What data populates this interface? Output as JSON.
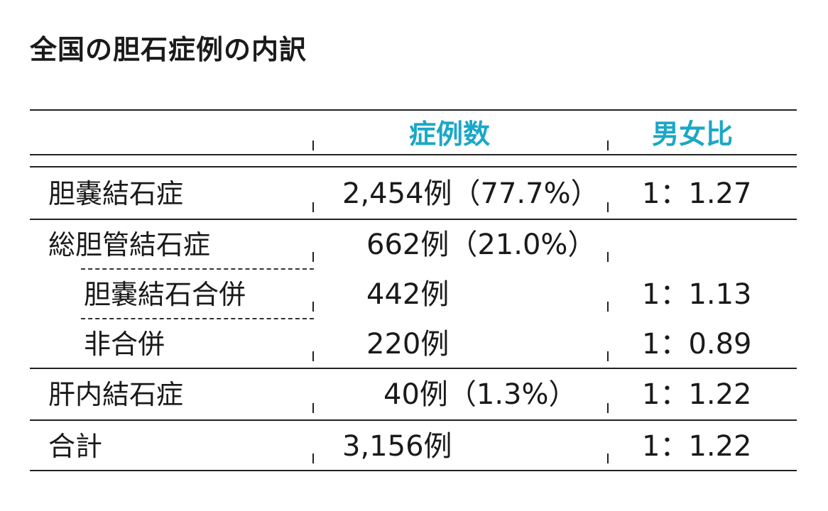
{
  "title": "全国の胆石症例の内訳",
  "header": {
    "col_cases": "症例数",
    "col_ratio": "男女比"
  },
  "colors": {
    "accent": "#1aa7c8",
    "line": "#222222"
  },
  "rows": [
    {
      "label": "胆嚢結石症",
      "cases": "2,454例（77.7%）",
      "ratio": "1：1.27"
    },
    {
      "label": "総胆管結石症",
      "cases": "662例（21.0%）",
      "ratio": ""
    },
    {
      "label": "胆嚢結石合併",
      "cases": "442例",
      "ratio": "1：1.13"
    },
    {
      "label": "非合併",
      "cases": "220例",
      "ratio": "1：0.89"
    },
    {
      "label": "肝内結石症",
      "cases": "40例（1.3%）",
      "ratio": "1：1.22"
    },
    {
      "label": "合計",
      "cases": "3,156例",
      "ratio": "1：1.22"
    }
  ]
}
